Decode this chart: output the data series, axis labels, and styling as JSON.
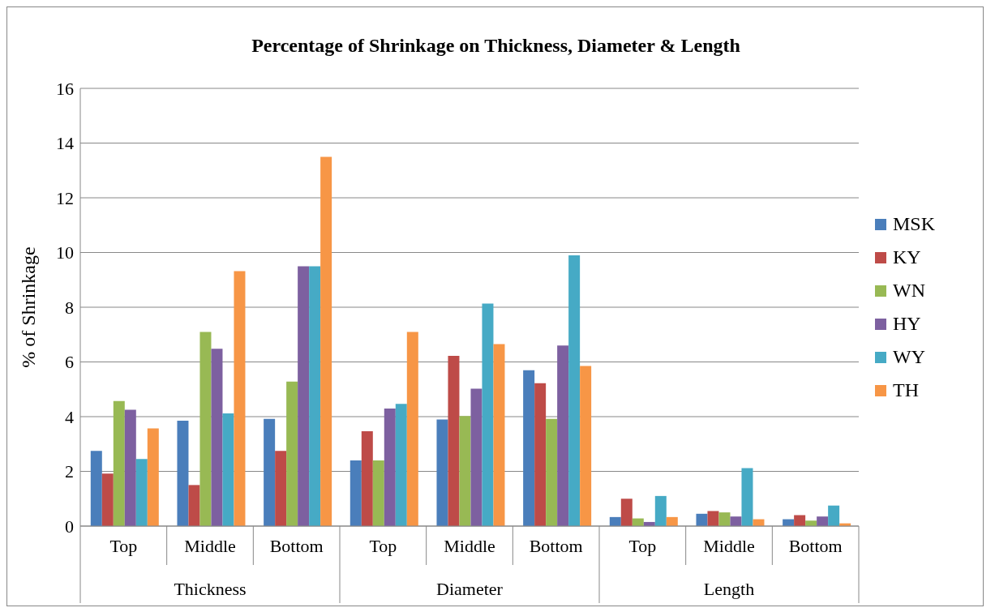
{
  "chart_data": {
    "type": "bar",
    "title": "Percentage of Shrinkage on Thickness, Diameter & Length",
    "ylabel": "% of Shrinkage",
    "categories": [
      "Top",
      "Middle",
      "Bottom",
      "Top",
      "Middle",
      "Bottom",
      "Top",
      "Middle",
      "Bottom"
    ],
    "annotations": [
      "Thickness",
      "Diameter",
      "Length"
    ],
    "series": [
      {
        "name": "MSK",
        "color": "#4a7ebb",
        "values": [
          2.75,
          3.85,
          3.92,
          2.4,
          3.9,
          5.7,
          0.33,
          0.45,
          0.25
        ]
      },
      {
        "name": "KY",
        "color": "#be4b48",
        "values": [
          1.92,
          1.5,
          2.75,
          3.47,
          6.22,
          5.22,
          1.0,
          0.55,
          0.4
        ]
      },
      {
        "name": "WN",
        "color": "#98b954",
        "values": [
          4.57,
          7.1,
          5.28,
          2.4,
          4.02,
          3.92,
          0.28,
          0.5,
          0.2
        ]
      },
      {
        "name": "HY",
        "color": "#7d60a0",
        "values": [
          4.25,
          6.48,
          9.5,
          4.3,
          5.02,
          6.6,
          0.15,
          0.35,
          0.35
        ]
      },
      {
        "name": "WY",
        "color": "#46aac5",
        "values": [
          2.45,
          4.12,
          9.5,
          4.47,
          8.13,
          9.9,
          1.1,
          2.12,
          0.75
        ]
      },
      {
        "name": "TH",
        "color": "#f79646",
        "values": [
          3.57,
          9.32,
          13.5,
          7.1,
          6.65,
          5.85,
          0.33,
          0.25,
          0.1
        ]
      }
    ],
    "ylim": [
      0,
      16
    ],
    "yticks": [
      0,
      2,
      4,
      6,
      8,
      10,
      12,
      14,
      16
    ],
    "grid": "y",
    "legend": "right"
  }
}
